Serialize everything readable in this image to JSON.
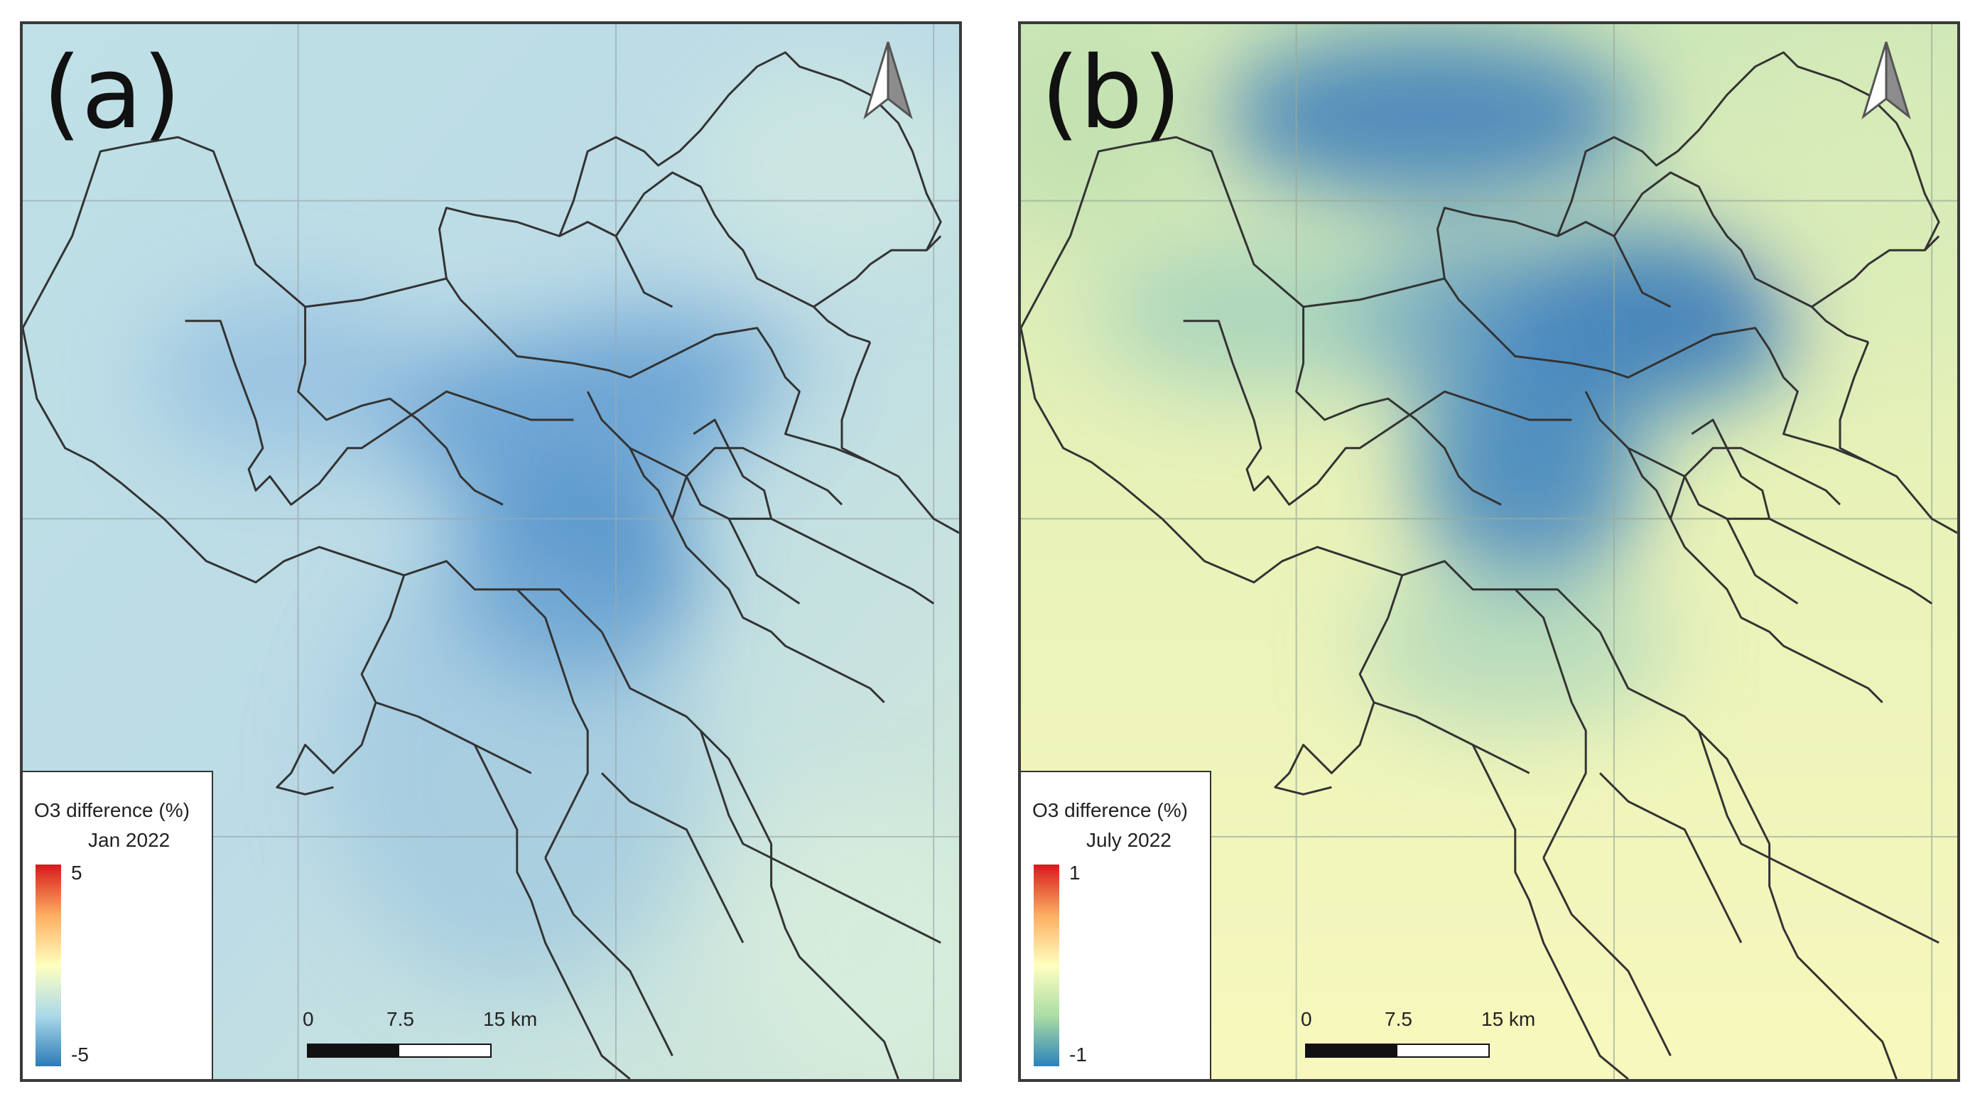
{
  "panels": [
    {
      "id": "a",
      "tag": "(a)",
      "legend_title": "O3 difference (%)",
      "legend_date": "Jan 2022",
      "legend_max": "5",
      "legend_min": "-5",
      "ramp_colors": [
        "#d7191c",
        "#fdae61",
        "#ffffbf",
        "#abd9e9",
        "#2c7bb6"
      ],
      "background_color": "#c9e4e4",
      "hotspot_color": "#3f86c6",
      "scale_labels": [
        "0",
        "7.5",
        "15 km"
      ]
    },
    {
      "id": "b",
      "tag": "(b)",
      "legend_title": "O3 difference (%)",
      "legend_date": "July 2022",
      "legend_max": "1",
      "legend_min": "-1",
      "ramp_colors": [
        "#d7191c",
        "#fdae61",
        "#ffffbf",
        "#abdda4",
        "#2b83ba"
      ],
      "background_color": "#f4f6b8",
      "hotspot_color": "#2f74bb",
      "scale_labels": [
        "0",
        "7.5",
        "15 km"
      ]
    }
  ],
  "icons": {
    "north_arrow": "north-arrow-icon"
  }
}
